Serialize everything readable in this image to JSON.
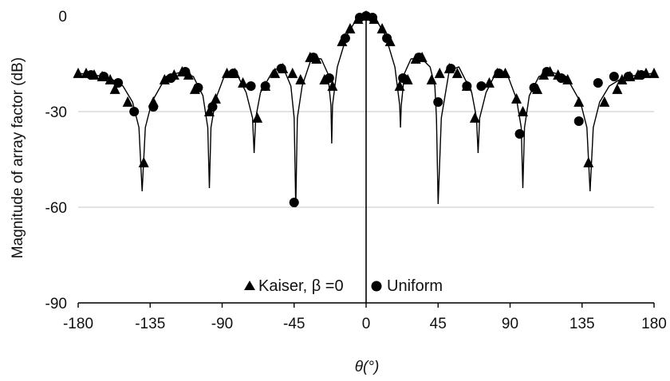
{
  "chart_data": {
    "type": "line",
    "title": "",
    "xlabel": "θ(°)",
    "ylabel": "Magnitude of array factor (dB)",
    "xlim": [
      -180,
      180
    ],
    "ylim": [
      -90,
      0
    ],
    "xticks": [
      -180,
      -135,
      -90,
      -45,
      0,
      45,
      90,
      135,
      180
    ],
    "yticks": [
      0,
      -30,
      -60,
      -90
    ],
    "xtick_labels": [
      "-180",
      "-135",
      "-90",
      "-45",
      "0",
      "45",
      "90",
      "135",
      "180"
    ],
    "ytick_labels": [
      "0",
      "-30",
      "-60",
      "-90"
    ],
    "grid": "horizontal",
    "legend_position": "bottom-center",
    "curve": {
      "x": [
        -180,
        -170,
        -160,
        -152,
        -146,
        -142,
        -140,
        -138,
        -134,
        -125,
        -115,
        -108,
        -102,
        -99,
        -98,
        -97,
        -94,
        -88,
        -80,
        -75,
        -71,
        -70,
        -69,
        -66,
        -58,
        -52,
        -47,
        -45,
        -44,
        -43,
        -40,
        -34,
        -28,
        -24,
        -22,
        -21.5,
        -21,
        -18,
        -12,
        -6,
        -2,
        0,
        2,
        6,
        12,
        18,
        21,
        21.5,
        22,
        24,
        28,
        34,
        40,
        43,
        44,
        45,
        47,
        52,
        58,
        66,
        69,
        70,
        71,
        75,
        80,
        88,
        94,
        97,
        98,
        99,
        102,
        108,
        115,
        125,
        134,
        138,
        140,
        142,
        146,
        152,
        160,
        170,
        180
      ],
      "y": [
        -18,
        -18.5,
        -19.5,
        -22,
        -27,
        -35,
        -55,
        -35,
        -27,
        -19,
        -17.5,
        -19,
        -25,
        -35,
        -54,
        -35,
        -26,
        -18,
        -19,
        -24,
        -32,
        -43,
        -32,
        -24,
        -17,
        -16,
        -22,
        -32,
        -60,
        -32,
        -22,
        -13,
        -13.5,
        -18,
        -28,
        -40,
        -28,
        -16,
        -6,
        -1,
        0,
        0,
        0,
        -1,
        -6,
        -16,
        -28,
        -35,
        -28,
        -18,
        -13.5,
        -13,
        -16,
        -22,
        -32,
        -59,
        -32,
        -17,
        -16,
        -24,
        -32,
        -43,
        -32,
        -24,
        -19,
        -18,
        -26,
        -35,
        -54,
        -35,
        -25,
        -19,
        -17.5,
        -19,
        -27,
        -35,
        -55,
        -35,
        -27,
        -22,
        -19.5,
        -18.5,
        -18
      ]
    },
    "series": [
      {
        "name": "Kaiser, β =0",
        "marker": "triangle",
        "x": [
          -180,
          -175,
          -170,
          -165,
          -160,
          -157,
          -149,
          -139,
          -133,
          -126,
          -120,
          -115,
          -111,
          -107,
          -98,
          -94,
          -87,
          -82,
          -77,
          -68,
          -63,
          -57,
          -52,
          -46,
          -41,
          -35,
          -31,
          -26,
          -21,
          -15,
          -10,
          -5,
          0,
          5,
          10,
          15,
          21,
          26,
          31,
          35,
          41,
          46,
          52,
          57,
          63,
          68,
          77,
          82,
          87,
          94,
          98,
          107,
          111,
          115,
          120,
          126,
          133,
          139,
          149,
          157,
          160,
          165,
          170,
          175,
          180
        ],
        "y": [
          -18,
          -18,
          -18.5,
          -19,
          -20,
          -23,
          -27,
          -46,
          -27,
          -20,
          -18.5,
          -17.5,
          -18.5,
          -23,
          -30,
          -26,
          -18,
          -18,
          -21,
          -32,
          -22,
          -18,
          -16.5,
          -18,
          -20,
          -13,
          -13.5,
          -20,
          -22,
          -8,
          -4,
          -1,
          0,
          -1,
          -4,
          -8,
          -22,
          -20,
          -13.5,
          -13,
          -20,
          -18,
          -16.5,
          -18,
          -22,
          -32,
          -21,
          -18,
          -18,
          -26,
          -30,
          -23,
          -18.5,
          -17.5,
          -18.5,
          -20,
          -27,
          -46,
          -27,
          -23,
          -20,
          -19,
          -18.5,
          -18,
          -18
        ]
      },
      {
        "name": "Uniform",
        "marker": "circle",
        "x": [
          -172,
          -164,
          -155,
          -145,
          -133,
          -122,
          -113,
          -105,
          -96,
          -83,
          -72,
          -63,
          -53,
          -45,
          -33,
          -23,
          -13,
          -4,
          0,
          4,
          13,
          23,
          33,
          45,
          53,
          63,
          72,
          83,
          96,
          105,
          113,
          122,
          133,
          145,
          155,
          164,
          172
        ],
        "y": [
          -18.5,
          -19,
          -21,
          -30,
          -28.5,
          -19.5,
          -17.5,
          -22.5,
          -28.5,
          -18,
          -22,
          -22,
          -16.5,
          -58.5,
          -13,
          -19.5,
          -7,
          -0.5,
          0,
          -0.5,
          -7,
          -19.5,
          -13,
          -27,
          -16.5,
          -22,
          -22,
          -18,
          -37,
          -22.5,
          -17.5,
          -19.5,
          -33,
          -21,
          -19,
          -19,
          -18.5
        ]
      }
    ]
  }
}
